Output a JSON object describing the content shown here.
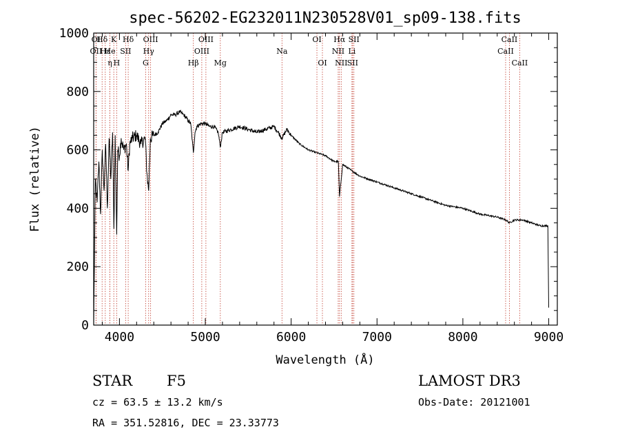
{
  "chart_data": {
    "type": "line",
    "title": "spec-56202-EG232011N230528V01_sp09-138.fits",
    "xlabel": "Wavelength (Å)",
    "ylabel": "Flux (relative)",
    "xlim": [
      3700,
      9100
    ],
    "ylim": [
      0,
      1000
    ],
    "x_ticks": [
      "4000",
      "5000",
      "6000",
      "7000",
      "8000",
      "9000"
    ],
    "y_ticks": [
      "0",
      "200",
      "400",
      "600",
      "800",
      "1000"
    ],
    "series": [
      {
        "name": "flux",
        "x": [
          3700,
          3720,
          3740,
          3760,
          3780,
          3800,
          3820,
          3840,
          3860,
          3880,
          3900,
          3920,
          3935,
          3950,
          3968,
          3980,
          4000,
          4020,
          4050,
          4080,
          4102,
          4120,
          4150,
          4200,
          4250,
          4300,
          4320,
          4340,
          4360,
          4400,
          4450,
          4500,
          4550,
          4600,
          4650,
          4700,
          4750,
          4800,
          4830,
          4861,
          4880,
          4900,
          4950,
          5000,
          5050,
          5100,
          5150,
          5175,
          5200,
          5300,
          5400,
          5500,
          5600,
          5700,
          5800,
          5850,
          5893,
          5950,
          6000,
          6100,
          6200,
          6300,
          6400,
          6500,
          6550,
          6563,
          6600,
          6700,
          6800,
          6900,
          7000,
          7200,
          7400,
          7600,
          7800,
          8000,
          8200,
          8400,
          8500,
          8542,
          8600,
          8700,
          8800,
          8900,
          8990,
          9000
        ],
        "y": [
          5,
          500,
          420,
          560,
          380,
          600,
          460,
          620,
          400,
          640,
          500,
          660,
          330,
          650,
          310,
          600,
          580,
          640,
          600,
          620,
          530,
          620,
          640,
          650,
          620,
          640,
          520,
          460,
          640,
          650,
          660,
          690,
          700,
          720,
          720,
          730,
          720,
          700,
          690,
          590,
          660,
          680,
          690,
          690,
          680,
          680,
          660,
          610,
          660,
          670,
          680,
          670,
          660,
          670,
          680,
          660,
          640,
          670,
          650,
          620,
          600,
          590,
          580,
          560,
          560,
          440,
          550,
          530,
          510,
          500,
          490,
          470,
          450,
          430,
          410,
          400,
          380,
          370,
          360,
          350,
          360,
          360,
          350,
          340,
          340,
          60
        ]
      }
    ],
    "line_markers": [
      {
        "label": "Hδ",
        "x": 3798
      },
      {
        "label": "K",
        "x": 3934
      },
      {
        "label": "Hδ",
        "x": 4102
      },
      {
        "label": "OIII",
        "x": 4363
      },
      {
        "label": "OIII",
        "x": 5007
      },
      {
        "label": "OI",
        "x": 6300
      },
      {
        "label": "Hα",
        "x": 6563
      },
      {
        "label": "SII",
        "x": 6731
      },
      {
        "label": "CaII",
        "x": 8542
      },
      {
        "label": "OI",
        "x": 3727
      },
      {
        "label": "He",
        "x": 3889
      },
      {
        "label": "SII",
        "x": 4072
      },
      {
        "label": "Hγ",
        "x": 4340
      },
      {
        "label": "OIII",
        "x": 4959
      },
      {
        "label": "Na",
        "x": 5893
      },
      {
        "label": "NII",
        "x": 6548
      },
      {
        "label": "Li",
        "x": 6708
      },
      {
        "label": "CaII",
        "x": 8498
      },
      {
        "label": "OII",
        "x": 3727
      },
      {
        "label": "Hε",
        "x": 3835
      },
      {
        "label": "η",
        "x": 3889
      },
      {
        "label": "H",
        "x": 3968
      },
      {
        "label": "G",
        "x": 4305
      },
      {
        "label": "Hβ",
        "x": 4861
      },
      {
        "label": "Mg",
        "x": 5175
      },
      {
        "label": "OI",
        "x": 6364
      },
      {
        "label": "NII",
        "x": 6583
      },
      {
        "label": "SII",
        "x": 6716
      },
      {
        "label": "CaII",
        "x": 8662
      }
    ]
  },
  "info": {
    "object_class": "STAR",
    "subclass": "F5",
    "survey": "LAMOST DR3",
    "cz": "cz = 63.5 ± 13.2 km/s",
    "obs_date": "Obs-Date: 20121001",
    "coords": "RA = 351.52816, DEC =  23.33773"
  },
  "colors": {
    "axis": "#000000",
    "spectrum": "#000000",
    "marker_line": "#c0392b",
    "background": "#ffffff"
  }
}
